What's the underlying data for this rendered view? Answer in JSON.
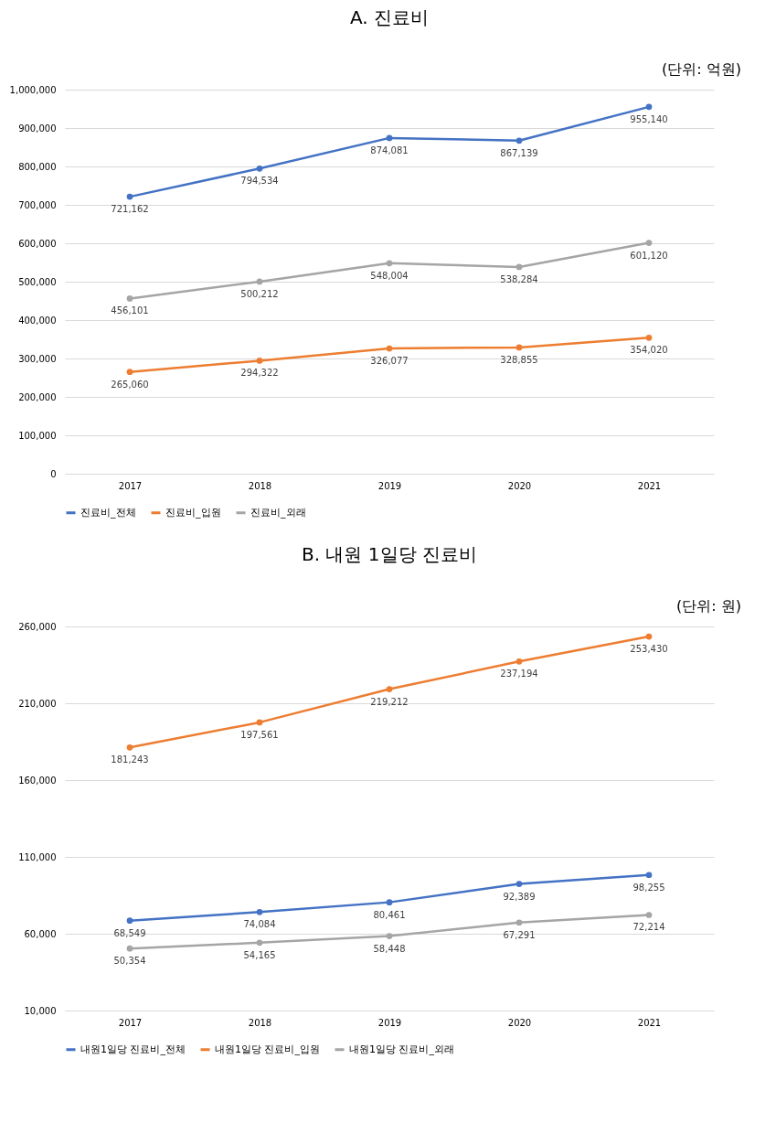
{
  "chart_data": [
    {
      "type": "line",
      "title": "A. 진료비",
      "annotations": [
        "(단위: 억원)"
      ],
      "categories": [
        "2017",
        "2018",
        "2019",
        "2020",
        "2021"
      ],
      "series": [
        {
          "name": "진료비_전체",
          "color": "#4472c4",
          "values": [
            721162,
            794534,
            874081,
            867139,
            955140
          ],
          "value_labels": [
            "721,162",
            "794,534",
            "874,081",
            "867,139",
            "955,140"
          ]
        },
        {
          "name": "진료비_입원",
          "color": "#ed7d31",
          "values": [
            265060,
            294322,
            326077,
            328855,
            354020
          ],
          "value_labels": [
            "265,060",
            "294,322",
            "326,077",
            "328,855",
            "354,020"
          ]
        },
        {
          "name": "진료비_외래",
          "color": "#a5a5a5",
          "values": [
            456101,
            500212,
            548004,
            538284,
            601120
          ],
          "value_labels": [
            "456,101",
            "500,212",
            "548,004",
            "538,284",
            "601,120"
          ]
        }
      ],
      "ylim": [
        0,
        1000000
      ],
      "yticks": [
        0,
        {
          "value": 100000,
          "label": "100,000"
        },
        {
          "value": 200000,
          "label": "200,000"
        },
        {
          "value": 300000,
          "label": "300,000"
        },
        {
          "value": 400000,
          "label": "400,000"
        },
        {
          "value": 500000,
          "label": "500,000"
        },
        {
          "value": 600000,
          "label": "600,000"
        },
        {
          "value": 700000,
          "label": "700,000"
        },
        {
          "value": 800000,
          "label": "800,000"
        },
        {
          "value": 900000,
          "label": "900,000"
        },
        {
          "value": 1000000,
          "label": "1,000,000"
        }
      ],
      "grid": "y",
      "legend": "bottom",
      "marker": "circle",
      "line_style": "solid"
    },
    {
      "type": "line",
      "title": "B. 내원 1일당 진료비",
      "annotations": [
        "(단위: 원)"
      ],
      "categories": [
        "2017",
        "2018",
        "2019",
        "2020",
        "2021"
      ],
      "series": [
        {
          "name": "내원1일당 진료비_전체",
          "color": "#4472c4",
          "values": [
            68549,
            74084,
            80461,
            92389,
            98255
          ],
          "value_labels": [
            "68,549",
            "74,084",
            "80,461",
            "92,389",
            "98,255"
          ]
        },
        {
          "name": "내원1일당 진료비_입원",
          "color": "#ed7d31",
          "values": [
            181243,
            197561,
            219212,
            237194,
            253430
          ],
          "value_labels": [
            "181,243",
            "197,561",
            "219,212",
            "237,194",
            "253,430"
          ]
        },
        {
          "name": "내원1일당 진료비_외래",
          "color": "#a5a5a5",
          "values": [
            50354,
            54165,
            58448,
            67291,
            72214
          ],
          "value_labels": [
            "50,354",
            "54,165",
            "58,448",
            "67,291",
            "72,214"
          ]
        }
      ],
      "ylim": [
        10000,
        260000
      ],
      "yticks": [
        {
          "value": 10000,
          "label": "10,000"
        },
        {
          "value": 60000,
          "label": "60,000"
        },
        {
          "value": 110000,
          "label": "110,000"
        },
        {
          "value": 160000,
          "label": "160,000"
        },
        {
          "value": 210000,
          "label": "210,000"
        },
        {
          "value": 260000,
          "label": "260,000"
        }
      ],
      "grid": "y",
      "legend": "bottom",
      "marker": "circle",
      "line_style": "solid"
    }
  ]
}
